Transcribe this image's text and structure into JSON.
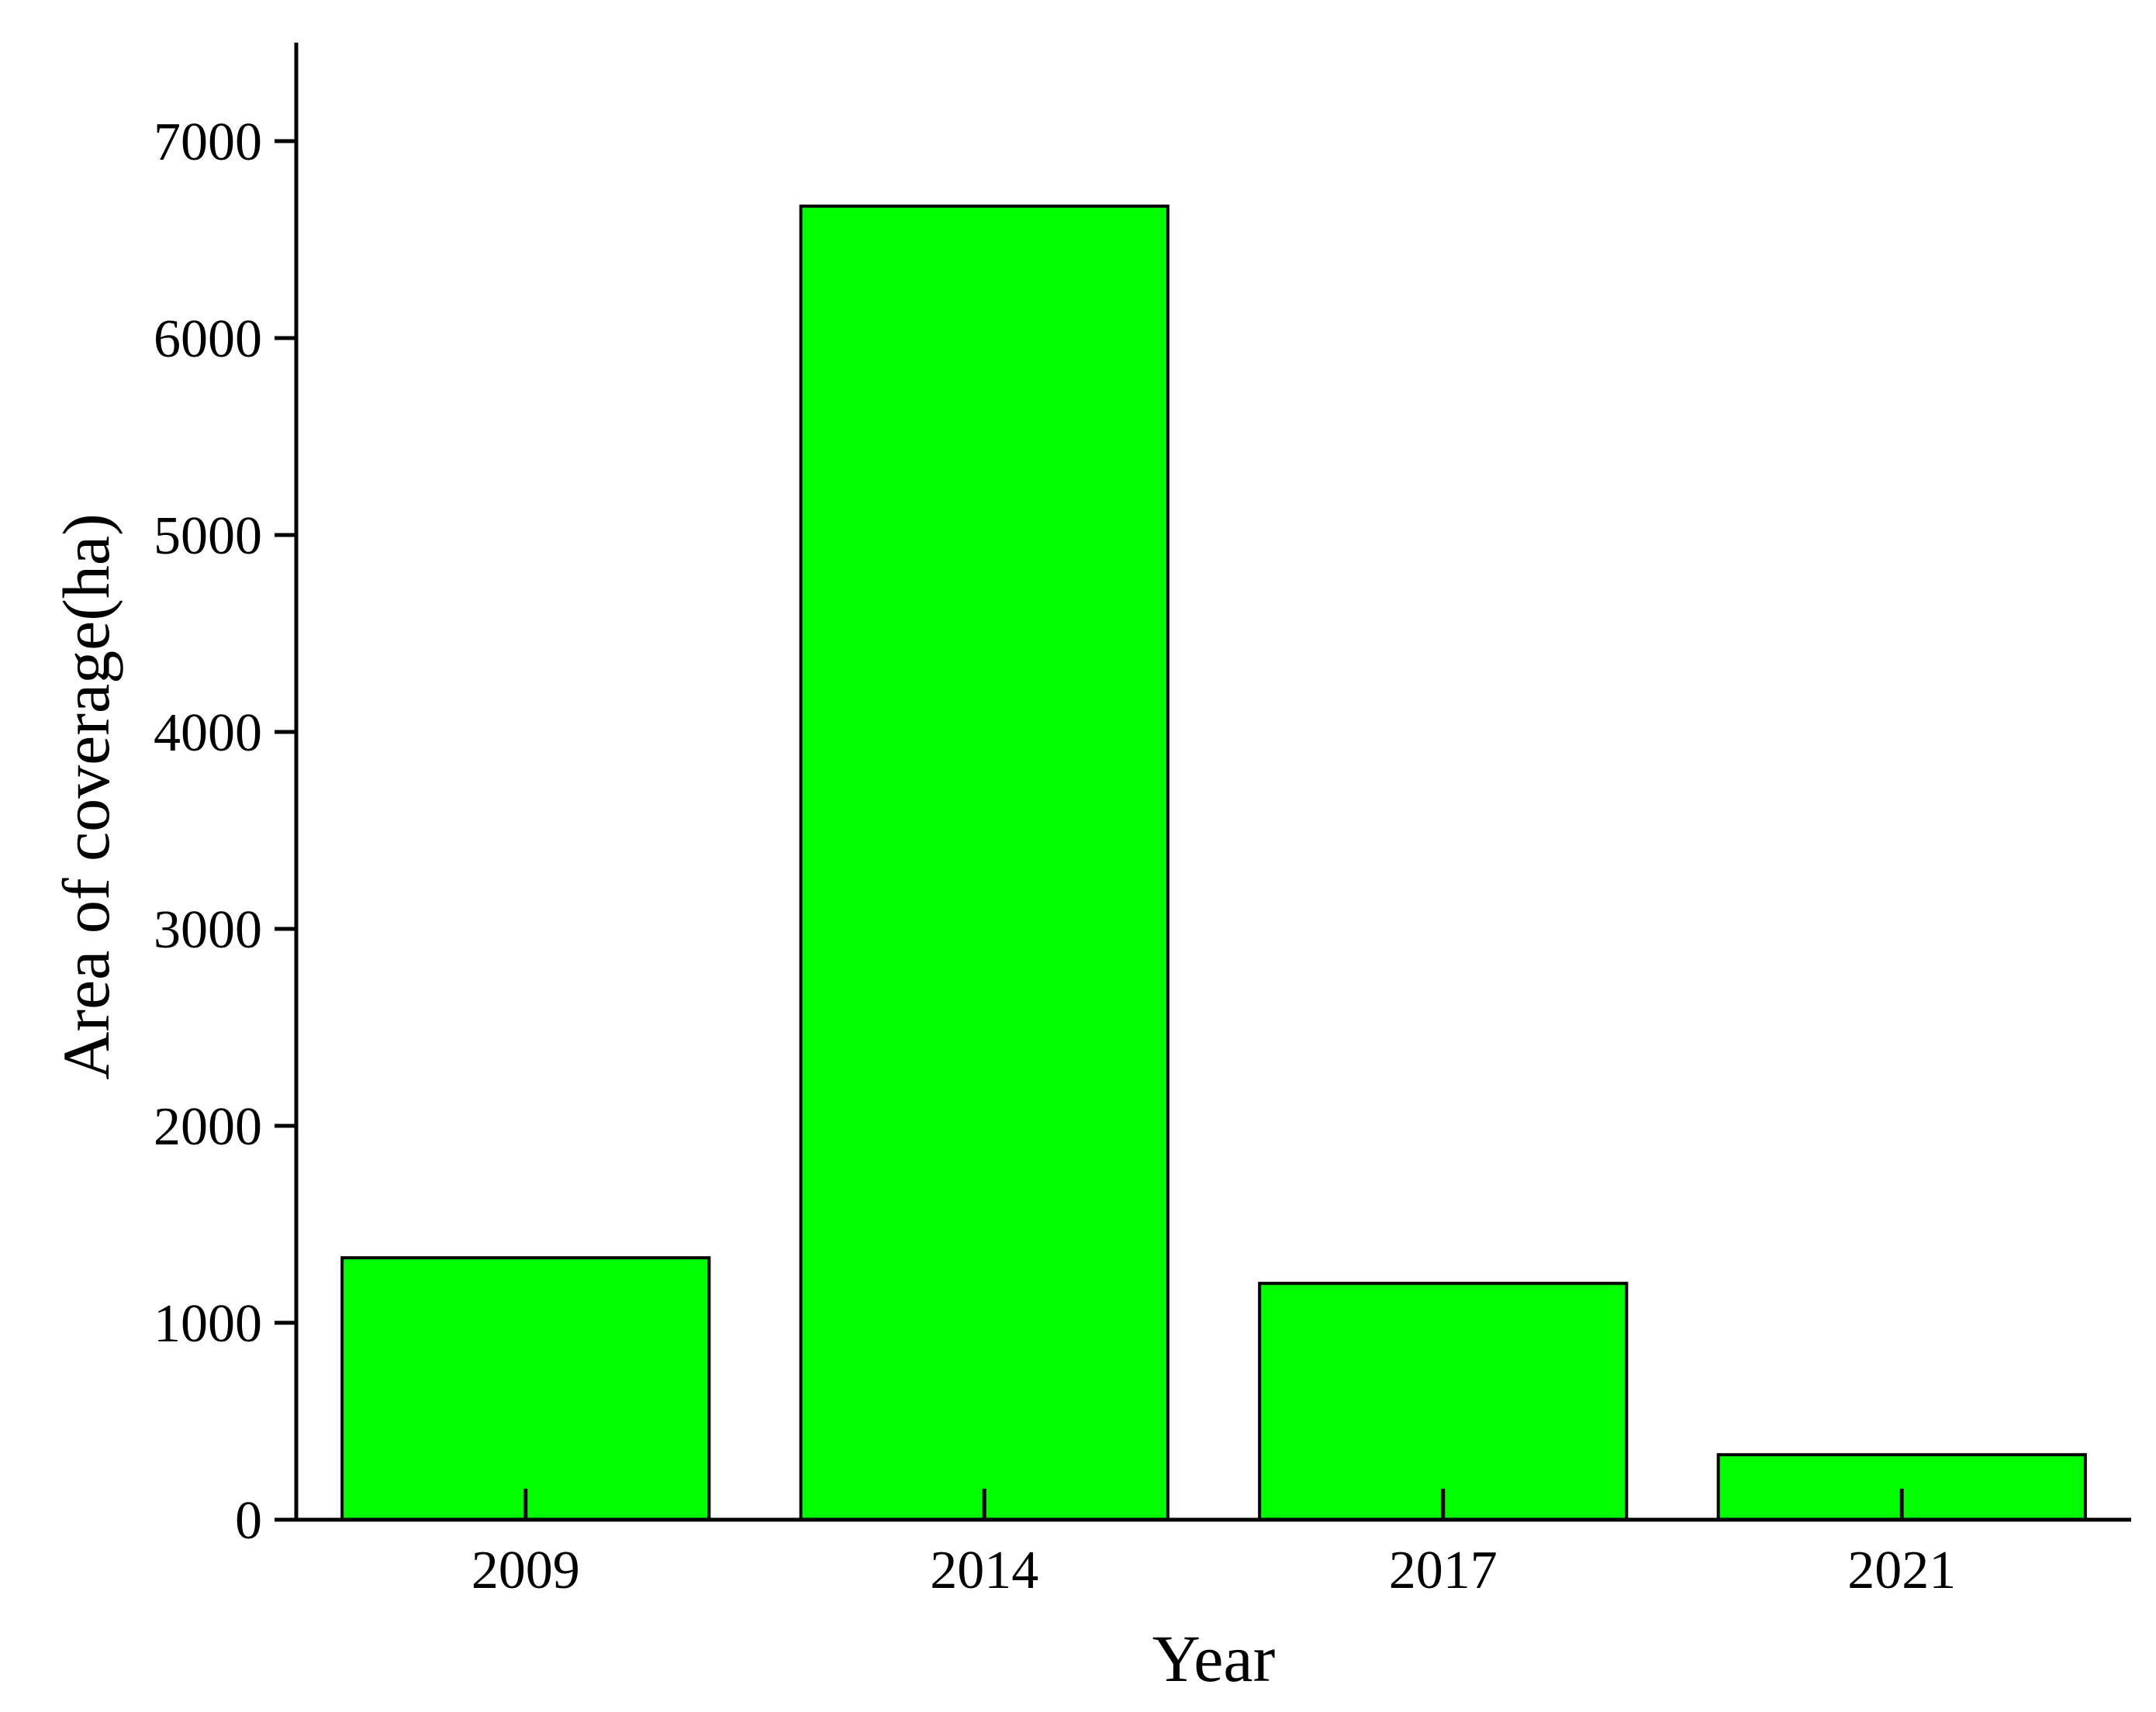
{
  "chart_data": {
    "type": "bar",
    "title": "",
    "xlabel": "Year",
    "ylabel": "Area of coverage(ha)",
    "categories": [
      "2009",
      "2014",
      "2017",
      "2021"
    ],
    "values": [
      1330,
      6670,
      1200,
      330
    ],
    "ylim": [
      0,
      7500
    ],
    "yticks": [
      0,
      1000,
      2000,
      3000,
      4000,
      5000,
      6000,
      7000
    ],
    "ytick_labels": [
      "0",
      "1000",
      "2000",
      "3000",
      "4000",
      "5000",
      "6000",
      "7000"
    ],
    "bar_color": "#00ff00",
    "grid": false,
    "legend": "none"
  }
}
